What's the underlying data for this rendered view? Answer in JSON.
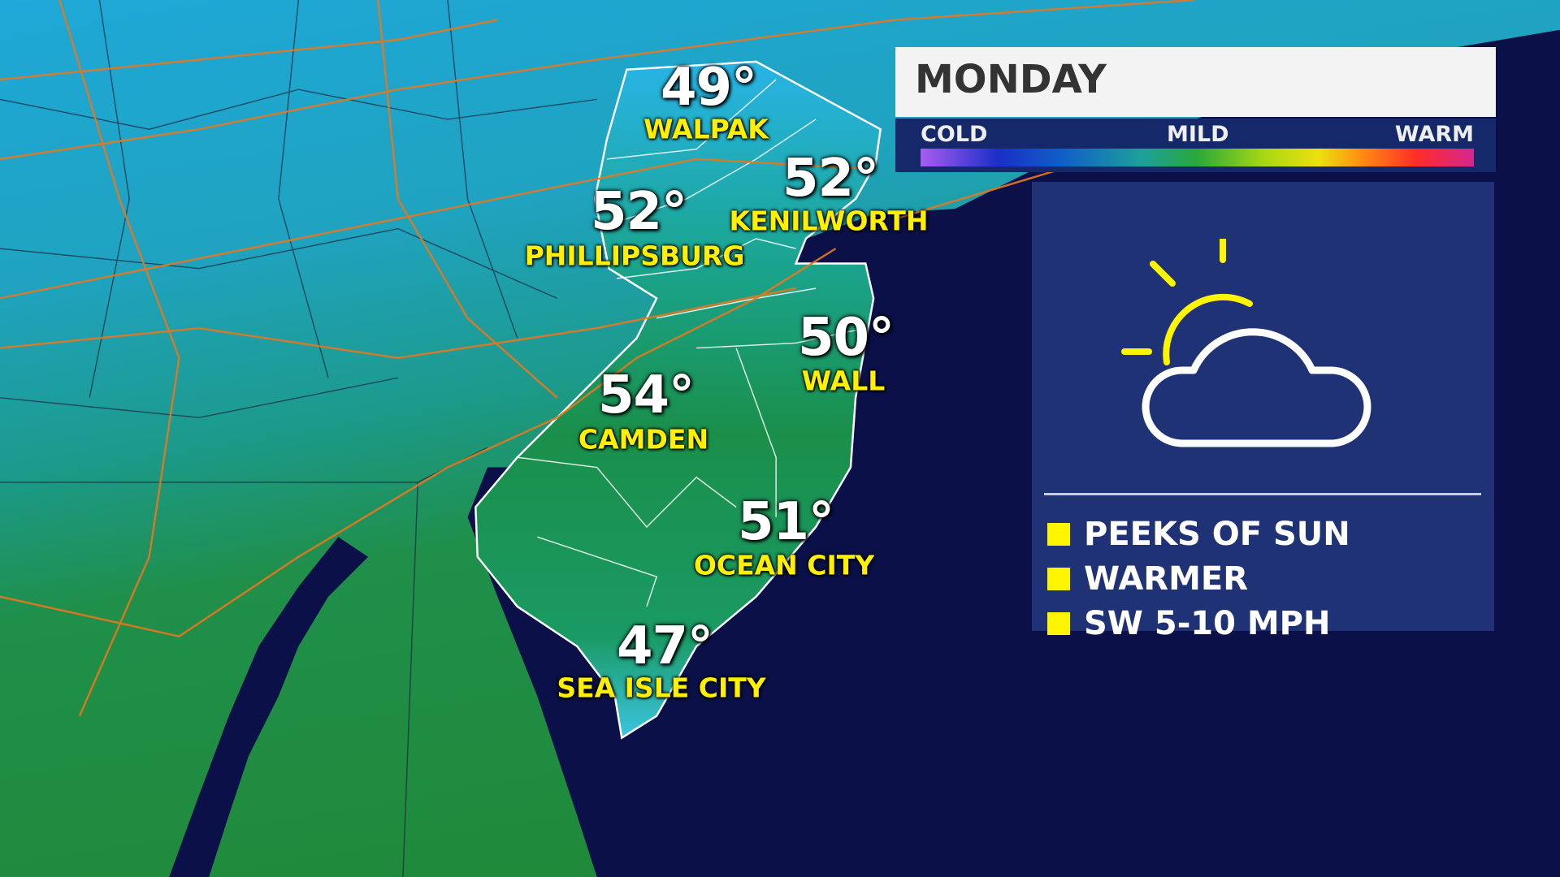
{
  "header": {
    "day": "MONDAY"
  },
  "temperature_scale": {
    "low_label": "COLD",
    "mid_label": "MILD",
    "high_label": "WARM"
  },
  "cities": [
    {
      "name": "WALPAK",
      "temp": "49°"
    },
    {
      "name": "PHILLIPSBURG",
      "temp": "52°"
    },
    {
      "name": "KENILWORTH",
      "temp": "52°"
    },
    {
      "name": "WALL",
      "temp": "50°"
    },
    {
      "name": "CAMDEN",
      "temp": "54°"
    },
    {
      "name": "OCEAN CITY",
      "temp": "51°"
    },
    {
      "name": "SEA ISLE CITY",
      "temp": "47°"
    }
  ],
  "forecast": {
    "icon": "partly-sunny-icon",
    "bullets": [
      "PEEKS OF SUN",
      "WARMER",
      "SW 5-10 MPH"
    ]
  },
  "colors": {
    "ocean": "#0b1148",
    "panel": "#1f3275",
    "city_label": "#ffef00",
    "bullet": "#fff500",
    "roads": "#e8771e"
  }
}
